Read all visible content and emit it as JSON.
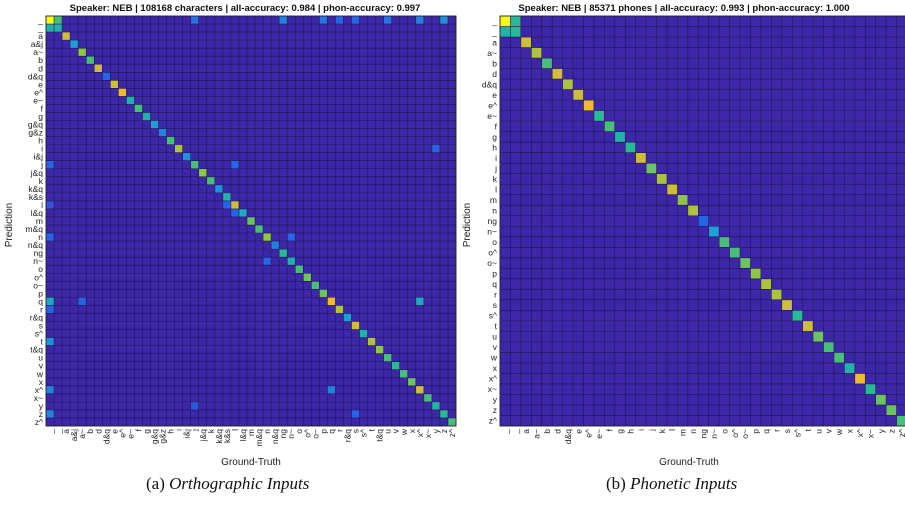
{
  "panel_a": {
    "title": "Speaker: NEB | 108168 characters | all-accuracy: 0.984 | phon-accuracy: 0.997",
    "caption_prefix": "(a)",
    "caption_label": "Orthographic Inputs"
  },
  "panel_b": {
    "title": "Speaker: NEB | 85371 phones | all-accuracy: 0.993 | phon-accuracy: 1.000",
    "caption_prefix": "(b)",
    "caption_label": "Phonetic Inputs"
  },
  "chart_data": [
    {
      "type": "heatmap",
      "title": "Speaker: NEB | 108168 characters | all-accuracy: 0.984 | phon-accuracy: 0.997",
      "xlabel": "Ground-Truth",
      "ylabel": "Prediction",
      "labels": [
        "_",
        "_",
        "a",
        "a&j",
        "a~",
        "b",
        "d",
        "d&q",
        "e",
        "e^",
        "e~",
        "f",
        "g",
        "g&q",
        "g&z",
        "h",
        "i",
        "i&j",
        "j",
        "j&q",
        "k",
        "k&q",
        "k&s",
        "l",
        "l&q",
        "m",
        "m&q",
        "n",
        "n&q",
        "ng",
        "n~",
        "o",
        "o^",
        "o~",
        "p",
        "q",
        "r",
        "r&q",
        "s",
        "s^",
        "t",
        "t&q",
        "u",
        "v",
        "w",
        "x",
        "x^",
        "x~",
        "y",
        "z",
        "z^"
      ],
      "diagonal": [
        1.0,
        0.5,
        0.8,
        0.4,
        0.7,
        0.6,
        0.8,
        0.2,
        0.8,
        0.85,
        0.5,
        0.6,
        0.5,
        0.4,
        0.3,
        0.6,
        0.75,
        0.35,
        0.6,
        0.7,
        0.6,
        0.35,
        0.5,
        0.8,
        0.45,
        0.65,
        0.6,
        0.7,
        0.3,
        0.55,
        0.5,
        0.6,
        0.65,
        0.6,
        0.65,
        0.85,
        0.75,
        0.4,
        0.8,
        0.5,
        0.75,
        0.7,
        0.6,
        0.55,
        0.6,
        0.65,
        0.8,
        0.6,
        0.5,
        0.55,
        0.6
      ],
      "off_diagonal": [
        {
          "row": 0,
          "col": 1,
          "v": 0.6
        },
        {
          "row": 1,
          "col": 0,
          "v": 0.5
        },
        {
          "row": 0,
          "col": 18,
          "v": 0.25
        },
        {
          "row": 0,
          "col": 29,
          "v": 0.3
        },
        {
          "row": 0,
          "col": 34,
          "v": 0.25
        },
        {
          "row": 0,
          "col": 36,
          "v": 0.2
        },
        {
          "row": 0,
          "col": 38,
          "v": 0.2
        },
        {
          "row": 0,
          "col": 42,
          "v": 0.25
        },
        {
          "row": 0,
          "col": 46,
          "v": 0.3
        },
        {
          "row": 0,
          "col": 49,
          "v": 0.35
        },
        {
          "row": 18,
          "col": 0,
          "v": 0.2
        },
        {
          "row": 18,
          "col": 23,
          "v": 0.2
        },
        {
          "row": 23,
          "col": 0,
          "v": 0.15
        },
        {
          "row": 23,
          "col": 22,
          "v": 0.2
        },
        {
          "row": 24,
          "col": 23,
          "v": 0.2
        },
        {
          "row": 27,
          "col": 0,
          "v": 0.2
        },
        {
          "row": 27,
          "col": 30,
          "v": 0.2
        },
        {
          "row": 30,
          "col": 27,
          "v": 0.2
        },
        {
          "row": 35,
          "col": 0,
          "v": 0.45
        },
        {
          "row": 35,
          "col": 4,
          "v": 0.2
        },
        {
          "row": 35,
          "col": 46,
          "v": 0.45
        },
        {
          "row": 36,
          "col": 0,
          "v": 0.2
        },
        {
          "row": 40,
          "col": 0,
          "v": 0.35
        },
        {
          "row": 16,
          "col": 48,
          "v": 0.2
        },
        {
          "row": 46,
          "col": 0,
          "v": 0.3
        },
        {
          "row": 46,
          "col": 35,
          "v": 0.3
        },
        {
          "row": 49,
          "col": 0,
          "v": 0.3
        },
        {
          "row": 49,
          "col": 38,
          "v": 0.2
        },
        {
          "row": 48,
          "col": 18,
          "v": 0.15
        }
      ],
      "colormap": "parula",
      "grid": true
    },
    {
      "type": "heatmap",
      "title": "Speaker: NEB | 85371 phones | all-accuracy: 0.993 | phon-accuracy: 1.000",
      "xlabel": "Ground-Truth",
      "ylabel": "Prediction",
      "labels": [
        "_",
        "_",
        "a",
        "a~",
        "b",
        "d",
        "d&q",
        "e",
        "e^",
        "e~",
        "f",
        "g",
        "h",
        "i",
        "j",
        "k",
        "l",
        "m",
        "n",
        "ng",
        "n~",
        "o",
        "o^",
        "o~",
        "p",
        "q",
        "r",
        "s",
        "s^",
        "t",
        "u",
        "v",
        "w",
        "x",
        "x^",
        "x~",
        "y",
        "z",
        "z^"
      ],
      "diagonal": [
        1.0,
        0.55,
        0.8,
        0.75,
        0.6,
        0.8,
        0.75,
        0.8,
        0.85,
        0.55,
        0.6,
        0.5,
        0.55,
        0.8,
        0.65,
        0.75,
        0.8,
        0.7,
        0.75,
        0.2,
        0.4,
        0.6,
        0.6,
        0.65,
        0.7,
        0.75,
        0.75,
        0.8,
        0.55,
        0.8,
        0.65,
        0.6,
        0.6,
        0.5,
        0.85,
        0.55,
        0.65,
        0.65,
        0.6
      ],
      "off_diagonal": [
        {
          "row": 0,
          "col": 1,
          "v": 0.55
        },
        {
          "row": 1,
          "col": 0,
          "v": 0.5
        }
      ],
      "colormap": "parula",
      "grid": true
    }
  ]
}
